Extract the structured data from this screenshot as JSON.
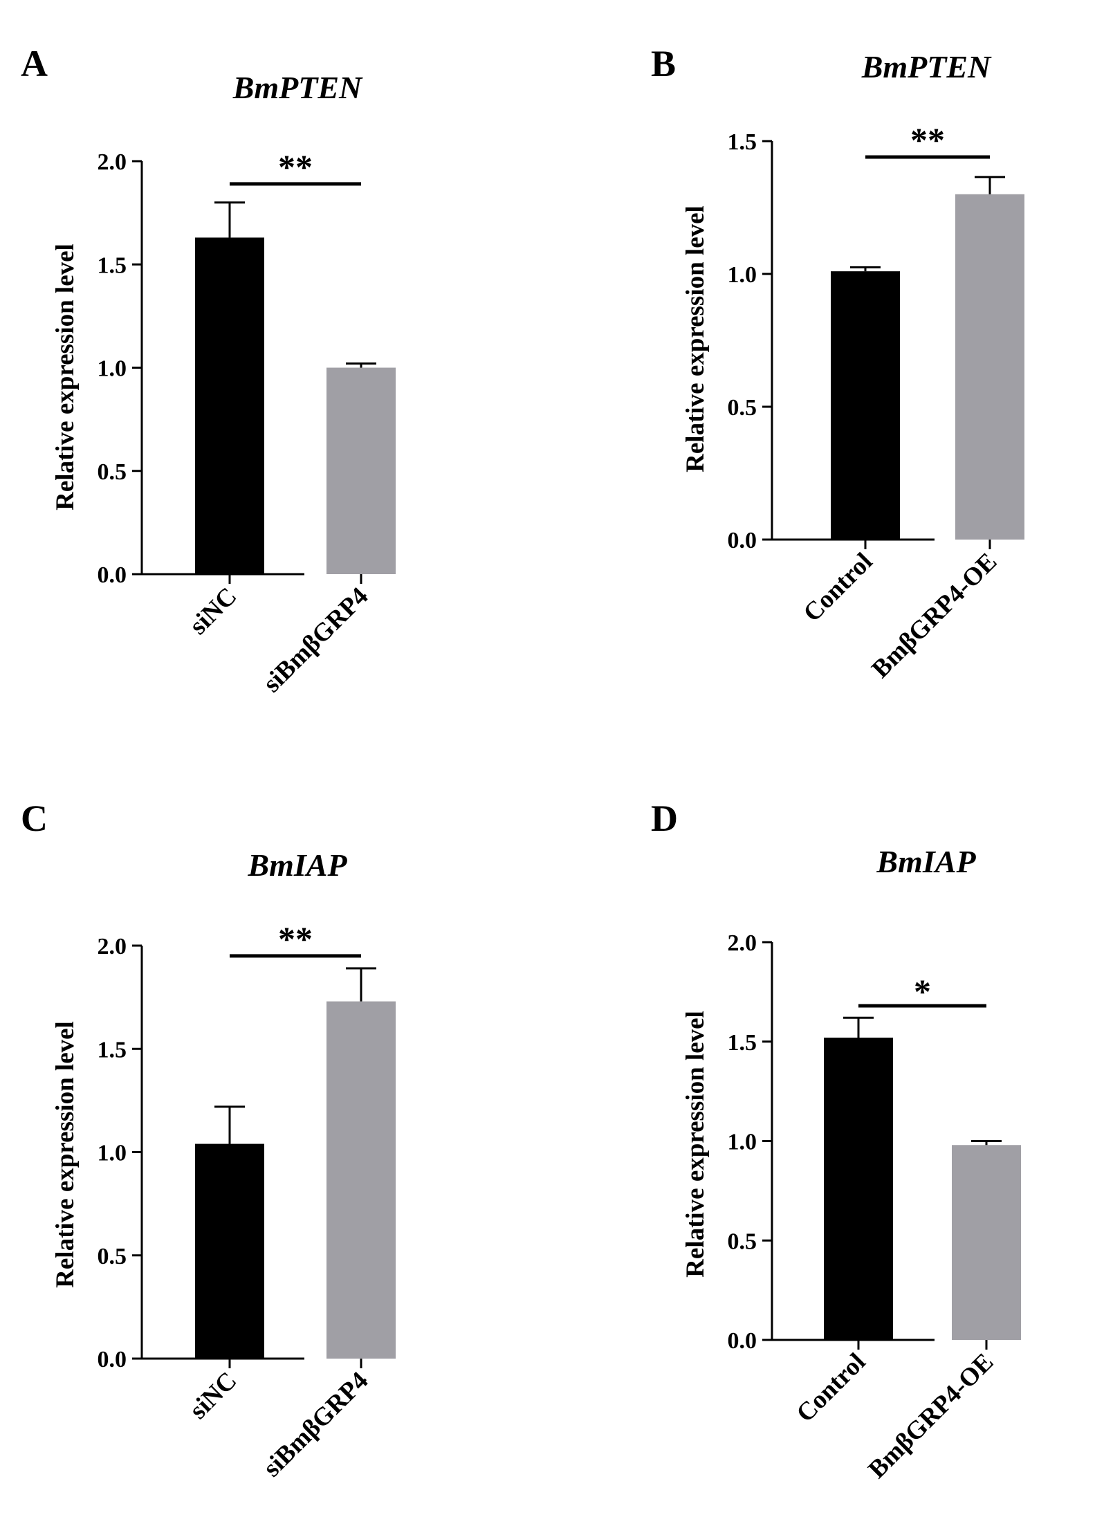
{
  "colors": {
    "bar_first": "#000000",
    "bar_second": "#a09fa5",
    "axis": "#000000"
  },
  "chart_data": [
    {
      "type": "bar",
      "panel_label": "A",
      "title": "BmPTEN",
      "ylabel": "Relative expression level",
      "xlabel": "",
      "categories": [
        "siNC",
        "siBmβGRP4"
      ],
      "values": [
        1.63,
        1.0
      ],
      "errors": [
        0.17,
        0.02
      ],
      "ylim": [
        0,
        2.0
      ],
      "yticks": [
        0.0,
        0.5,
        1.0,
        1.5,
        2.0
      ],
      "ytick_labels": [
        "0.0",
        "0.5",
        "1.0",
        "1.5",
        "2.0"
      ],
      "significance": "**",
      "sig_level": 1.89
    },
    {
      "type": "bar",
      "panel_label": "B",
      "title": "BmPTEN",
      "ylabel": "Relative expression level",
      "xlabel": "",
      "categories": [
        "Control",
        "BmβGRP4-OE"
      ],
      "values": [
        1.01,
        1.3
      ],
      "errors": [
        0.015,
        0.065
      ],
      "ylim": [
        0,
        1.5
      ],
      "yticks": [
        0.0,
        0.5,
        1.0,
        1.5
      ],
      "ytick_labels": [
        "0.0",
        "0.5",
        "1.0",
        "1.5"
      ],
      "significance": "**",
      "sig_level": 1.44
    },
    {
      "type": "bar",
      "panel_label": "C",
      "title": "BmIAP",
      "ylabel": "Relative expression level",
      "xlabel": "",
      "categories": [
        "siNC",
        "siBmβGRP4"
      ],
      "values": [
        1.04,
        1.73
      ],
      "errors": [
        0.18,
        0.16
      ],
      "ylim": [
        0,
        2.0
      ],
      "yticks": [
        0.0,
        0.5,
        1.0,
        1.5,
        2.0
      ],
      "ytick_labels": [
        "0.0",
        "0.5",
        "1.0",
        "1.5",
        "2.0"
      ],
      "significance": "**",
      "sig_level": 1.95
    },
    {
      "type": "bar",
      "panel_label": "D",
      "title": "BmIAP",
      "ylabel": "Relative expression level",
      "xlabel": "",
      "categories": [
        "Control",
        "BmβGRP4-OE"
      ],
      "values": [
        1.52,
        0.98
      ],
      "errors": [
        0.1,
        0.02
      ],
      "ylim": [
        0,
        2.0
      ],
      "yticks": [
        0.0,
        0.5,
        1.0,
        1.5,
        2.0
      ],
      "ytick_labels": [
        "0.0",
        "0.5",
        "1.0",
        "1.5",
        "2.0"
      ],
      "significance": "*",
      "sig_level": 1.68
    }
  ]
}
